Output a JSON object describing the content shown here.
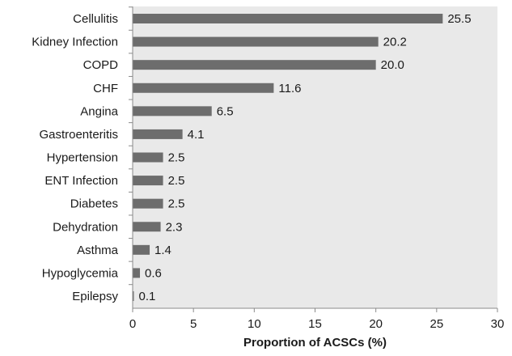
{
  "chart_data": {
    "type": "bar",
    "orientation": "horizontal",
    "categories": [
      "Cellulitis",
      "Kidney Infection",
      "COPD",
      "CHF",
      "Angina",
      "Gastroenteritis",
      "Hypertension",
      "ENT Infection",
      "Diabetes",
      "Dehydration",
      "Asthma",
      "Hypoglycemia",
      "Epilepsy"
    ],
    "values": [
      25.5,
      20.2,
      20.0,
      11.6,
      6.5,
      4.1,
      2.5,
      2.5,
      2.5,
      2.3,
      1.4,
      0.6,
      0.1
    ],
    "value_labels": [
      "25.5",
      "20.2",
      "20.0",
      "11.6",
      "6.5",
      "4.1",
      "2.5",
      "2.5",
      "2.5",
      "2.3",
      "1.4",
      "0.6",
      "0.1"
    ],
    "title": "",
    "xlabel": "Proportion of ACSCs (%)",
    "ylabel": "",
    "xlim": [
      0,
      30
    ],
    "xticks": [
      0,
      5,
      10,
      15,
      20,
      25,
      30
    ],
    "grid": false,
    "legend": "none",
    "plot_background": "#e9e9e9",
    "bar_color": "#6d6d6d"
  }
}
